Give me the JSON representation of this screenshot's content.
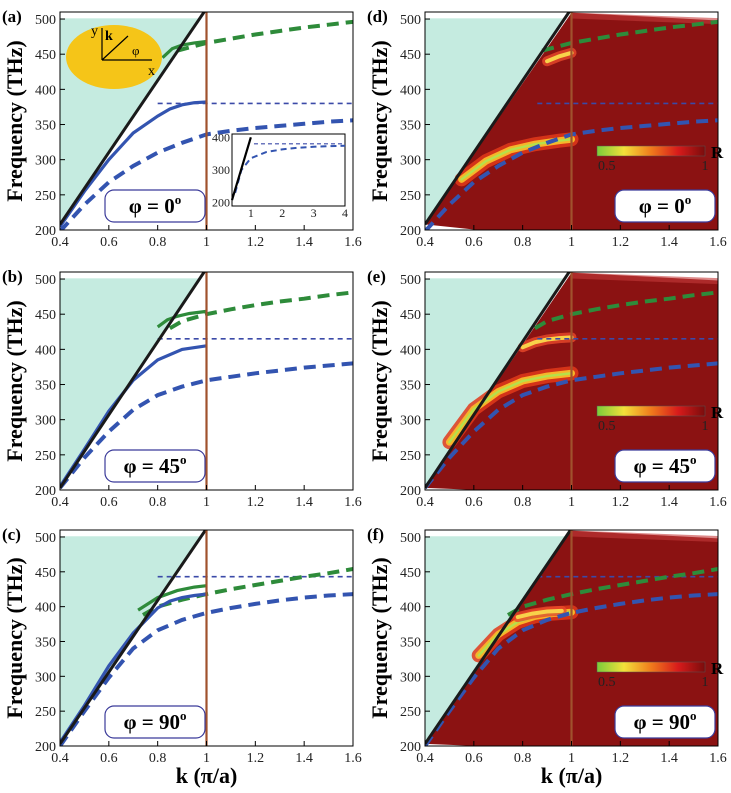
{
  "figure": {
    "xlabel": "k (π/a)",
    "ylabel": "Frequency (THz)",
    "colorbar": {
      "label": "R",
      "min_label": "0.5",
      "max_label": "1"
    }
  },
  "chart_data": [
    {
      "id": "a",
      "type": "line",
      "label": "(a)",
      "phi_label": "φ = 0",
      "phi_sup": "o",
      "kind": "dispersion",
      "xlim": [
        0.4,
        1.6
      ],
      "ylim": [
        200,
        510
      ],
      "xticks": [
        "0.4",
        "0.6",
        "0.8",
        "1",
        "1.2",
        "1.4",
        "1.6"
      ],
      "yticks": [
        "200",
        "250",
        "300",
        "350",
        "400",
        "450",
        "500"
      ],
      "asymptote": 380,
      "light_line": {
        "x": [
          0.4,
          1.0
        ],
        "y": [
          208,
          515
        ]
      },
      "series": [
        {
          "style": "green-solid",
          "x": [
            0.82,
            0.86,
            0.9,
            0.95,
            1.0
          ],
          "y": [
            445,
            458,
            463,
            466,
            468
          ]
        },
        {
          "style": "green-dashed",
          "x": [
            0.88,
            1.0,
            1.1,
            1.2,
            1.3,
            1.4,
            1.5,
            1.6
          ],
          "y": [
            455,
            466,
            472,
            478,
            483,
            488,
            492,
            496
          ]
        },
        {
          "style": "blue-solid",
          "x": [
            0.4,
            0.5,
            0.6,
            0.7,
            0.8,
            0.85,
            0.9,
            0.95,
            1.0
          ],
          "y": [
            205,
            255,
            300,
            338,
            362,
            372,
            378,
            381,
            382
          ]
        },
        {
          "style": "blue-dashed",
          "x": [
            0.4,
            0.5,
            0.6,
            0.7,
            0.8,
            0.9,
            1.0,
            1.1,
            1.2,
            1.3,
            1.4,
            1.5,
            1.6
          ],
          "y": [
            198,
            236,
            268,
            291,
            310,
            324,
            336,
            341,
            345,
            348,
            351,
            354,
            356
          ]
        }
      ],
      "inset": {
        "xticks": [
          "1",
          "2",
          "3",
          "4"
        ],
        "yticks": [
          "200",
          "300",
          "400"
        ],
        "xlim": [
          0.4,
          4
        ],
        "ylim": [
          190,
          410
        ],
        "asymptote": 380,
        "light_line": {
          "x": [
            0.4,
            1.0
          ],
          "y": [
            208,
            400
          ]
        },
        "blue_dashed": {
          "x": [
            0.5,
            0.7,
            1,
            1.5,
            2,
            2.5,
            3,
            3.5,
            4
          ],
          "y": [
            230,
            300,
            336,
            355,
            363,
            368,
            371,
            373,
            374
          ]
        }
      },
      "schematic": {
        "axis_y": "y",
        "axis_x": "x",
        "vector": "k",
        "angle": "φ"
      }
    },
    {
      "id": "b",
      "type": "line",
      "label": "(b)",
      "phi_label": "φ = 45",
      "phi_sup": "o",
      "kind": "dispersion",
      "xlim": [
        0.4,
        1.6
      ],
      "ylim": [
        200,
        510
      ],
      "xticks": [
        "0.4",
        "0.6",
        "0.8",
        "1",
        "1.2",
        "1.4",
        "1.6"
      ],
      "yticks": [
        "200",
        "250",
        "300",
        "350",
        "400",
        "450",
        "500"
      ],
      "asymptote": 415,
      "light_line": {
        "x": [
          0.4,
          1.0
        ],
        "y": [
          203,
          515
        ]
      },
      "series": [
        {
          "style": "green-solid",
          "x": [
            0.8,
            0.84,
            0.88,
            0.93,
            1.0
          ],
          "y": [
            432,
            442,
            447,
            451,
            454
          ]
        },
        {
          "style": "green-dashed",
          "x": [
            0.85,
            0.9,
            1.0,
            1.1,
            1.2,
            1.3,
            1.4,
            1.5,
            1.6
          ],
          "y": [
            430,
            440,
            450,
            457,
            463,
            468,
            472,
            477,
            481
          ]
        },
        {
          "style": "blue-solid",
          "x": [
            0.4,
            0.5,
            0.6,
            0.7,
            0.8,
            0.9,
            1.0
          ],
          "y": [
            205,
            258,
            312,
            356,
            385,
            400,
            405
          ]
        },
        {
          "style": "blue-dashed",
          "x": [
            0.4,
            0.5,
            0.6,
            0.7,
            0.8,
            0.9,
            1.0,
            1.1,
            1.2,
            1.3,
            1.4,
            1.5,
            1.6
          ],
          "y": [
            203,
            246,
            283,
            314,
            335,
            347,
            356,
            361,
            366,
            370,
            374,
            377,
            380
          ]
        }
      ]
    },
    {
      "id": "c",
      "type": "line",
      "label": "(c)",
      "phi_label": "φ = 90",
      "phi_sup": "o",
      "kind": "dispersion",
      "xlim": [
        0.4,
        1.6
      ],
      "ylim": [
        200,
        510
      ],
      "xticks": [
        "0.4",
        "0.6",
        "0.8",
        "1",
        "1.2",
        "1.4",
        "1.6"
      ],
      "yticks": [
        "200",
        "250",
        "300",
        "350",
        "400",
        "450",
        "500"
      ],
      "asymptote": 443,
      "light_line": {
        "x": [
          0.4,
          1.0
        ],
        "y": [
          203,
          512
        ]
      },
      "series": [
        {
          "style": "green-solid",
          "x": [
            0.72,
            0.8,
            0.88,
            0.95,
            1.0
          ],
          "y": [
            395,
            413,
            423,
            428,
            430
          ]
        },
        {
          "style": "green-dashed",
          "x": [
            0.74,
            0.8,
            0.9,
            1.0,
            1.1,
            1.2,
            1.3,
            1.4,
            1.5,
            1.6
          ],
          "y": [
            388,
            400,
            410,
            418,
            425,
            431,
            437,
            443,
            448,
            454
          ]
        },
        {
          "style": "blue-solid",
          "x": [
            0.4,
            0.5,
            0.6,
            0.7,
            0.8,
            0.85,
            0.9,
            0.95,
            1.0
          ],
          "y": [
            205,
            258,
            315,
            362,
            398,
            408,
            413,
            416,
            418
          ]
        },
        {
          "style": "blue-dashed",
          "x": [
            0.4,
            0.5,
            0.6,
            0.7,
            0.8,
            0.9,
            1.0,
            1.1,
            1.2,
            1.3,
            1.4,
            1.5,
            1.6
          ],
          "y": [
            200,
            250,
            298,
            340,
            366,
            381,
            391,
            398,
            404,
            409,
            413,
            416,
            418
          ]
        }
      ]
    },
    {
      "id": "d",
      "type": "heatmap",
      "label": "(d)",
      "phi_label": "φ = 0",
      "phi_sup": "o",
      "kind": "reflectance",
      "xlim": [
        0.4,
        1.6
      ],
      "ylim": [
        200,
        510
      ],
      "xticks": [
        "0.4",
        "0.6",
        "0.8",
        "1",
        "1.2",
        "1.4",
        "1.6"
      ],
      "yticks": [
        "200",
        "250",
        "300",
        "350",
        "400",
        "450",
        "500"
      ],
      "asymptote": 380,
      "light_line": {
        "x": [
          0.4,
          1.0
        ],
        "y": [
          208,
          515
        ]
      },
      "series": [
        {
          "style": "green-dashed",
          "x": [
            0.88,
            1.0,
            1.1,
            1.2,
            1.3,
            1.4,
            1.5,
            1.6
          ],
          "y": [
            455,
            466,
            472,
            478,
            483,
            488,
            492,
            496
          ]
        },
        {
          "style": "blue-dashed",
          "x": [
            0.4,
            0.5,
            0.6,
            0.7,
            0.8,
            0.9,
            1.0,
            1.1,
            1.2,
            1.3,
            1.4,
            1.5,
            1.6
          ],
          "y": [
            198,
            236,
            268,
            291,
            310,
            324,
            336,
            341,
            345,
            348,
            351,
            354,
            356
          ]
        }
      ],
      "bright_band": {
        "x": [
          0.55,
          0.65,
          0.75,
          0.85,
          0.95,
          1.0
        ],
        "y": [
          272,
          298,
          314,
          322,
          327,
          329
        ]
      },
      "bright_spot": {
        "x": [
          0.9,
          0.95,
          1.0
        ],
        "y": [
          440,
          447,
          452
        ]
      }
    },
    {
      "id": "e",
      "type": "heatmap",
      "label": "(e)",
      "phi_label": "φ = 45",
      "phi_sup": "o",
      "kind": "reflectance",
      "xlim": [
        0.4,
        1.6
      ],
      "ylim": [
        200,
        510
      ],
      "xticks": [
        "0.4",
        "0.6",
        "0.8",
        "1",
        "1.2",
        "1.4",
        "1.6"
      ],
      "yticks": [
        "200",
        "250",
        "300",
        "350",
        "400",
        "450",
        "500"
      ],
      "asymptote": 415,
      "light_line": {
        "x": [
          0.4,
          1.0
        ],
        "y": [
          203,
          515
        ]
      },
      "series": [
        {
          "style": "green-dashed",
          "x": [
            0.85,
            0.9,
            1.0,
            1.1,
            1.2,
            1.3,
            1.4,
            1.5,
            1.6
          ],
          "y": [
            430,
            440,
            450,
            457,
            463,
            468,
            472,
            477,
            481
          ]
        },
        {
          "style": "blue-dashed",
          "x": [
            0.4,
            0.5,
            0.6,
            0.7,
            0.8,
            0.9,
            1.0,
            1.1,
            1.2,
            1.3,
            1.4,
            1.5,
            1.6
          ],
          "y": [
            203,
            246,
            283,
            314,
            335,
            347,
            356,
            361,
            366,
            370,
            374,
            377,
            380
          ]
        }
      ],
      "bright_band": {
        "x": [
          0.5,
          0.6,
          0.7,
          0.8,
          0.9,
          1.0
        ],
        "y": [
          268,
          315,
          340,
          355,
          362,
          366
        ]
      },
      "bright_spot": {
        "x": [
          0.8,
          0.85,
          0.9,
          0.95,
          1.0
        ],
        "y": [
          403,
          410,
          414,
          416,
          417
        ]
      }
    },
    {
      "id": "f",
      "type": "heatmap",
      "label": "(f)",
      "phi_label": "φ = 90",
      "phi_sup": "o",
      "kind": "reflectance",
      "xlim": [
        0.4,
        1.6
      ],
      "ylim": [
        200,
        510
      ],
      "xticks": [
        "0.4",
        "0.6",
        "0.8",
        "1",
        "1.2",
        "1.4",
        "1.6"
      ],
      "yticks": [
        "200",
        "250",
        "300",
        "350",
        "400",
        "450",
        "500"
      ],
      "asymptote": 443,
      "light_line": {
        "x": [
          0.4,
          1.0
        ],
        "y": [
          203,
          512
        ]
      },
      "series": [
        {
          "style": "green-dashed",
          "x": [
            0.74,
            0.8,
            0.9,
            1.0,
            1.1,
            1.2,
            1.3,
            1.4,
            1.5,
            1.6
          ],
          "y": [
            388,
            400,
            410,
            418,
            425,
            431,
            437,
            443,
            448,
            454
          ]
        },
        {
          "style": "blue-dashed",
          "x": [
            0.4,
            0.5,
            0.6,
            0.7,
            0.8,
            0.9,
            1.0,
            1.1,
            1.2,
            1.3,
            1.4,
            1.5,
            1.6
          ],
          "y": [
            200,
            250,
            298,
            340,
            366,
            381,
            391,
            398,
            404,
            409,
            413,
            416,
            418
          ]
        }
      ],
      "bright_band": {
        "x": [
          0.62,
          0.7,
          0.78,
          0.85,
          0.92,
          1.0
        ],
        "y": [
          330,
          360,
          378,
          386,
          390,
          392
        ]
      },
      "bright_spot": {
        "x": [
          0.78,
          0.84,
          0.9,
          0.96
        ],
        "y": [
          385,
          390,
          393,
          394
        ]
      }
    }
  ],
  "colors": {
    "light_cone": "#c5ebe0",
    "light_line": "#1a1a1a",
    "vertical_line": "#a0522d",
    "blue": "#3354b0",
    "green": "#2e8b3a",
    "heat_bg": "#8b1212",
    "asymptote": "#3b4aa8",
    "ellipse": "#f5c518"
  }
}
